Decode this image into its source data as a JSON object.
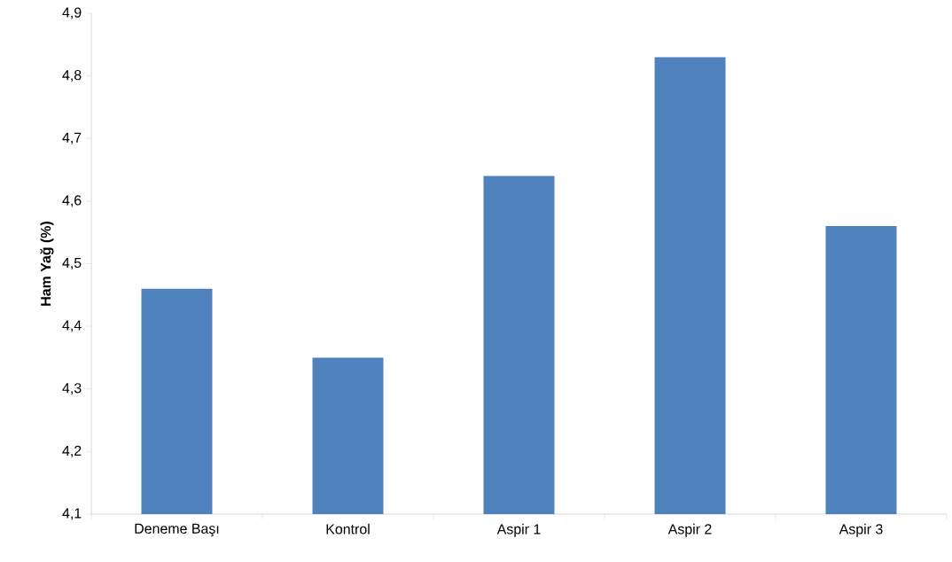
{
  "chart_data": {
    "type": "bar",
    "ylabel": "Ham Yağ (%)",
    "categories": [
      "Deneme Başı",
      "Kontrol",
      "Aspir 1",
      "Aspir 2",
      "Aspir 3"
    ],
    "values": [
      4.46,
      4.35,
      4.64,
      4.83,
      4.56
    ],
    "color": "#4f81bd",
    "ylim": [
      4.1,
      4.9
    ],
    "yticks": [
      {
        "value": 4.1,
        "label": "4,1"
      },
      {
        "value": 4.2,
        "label": "4,2"
      },
      {
        "value": 4.3,
        "label": "4,3"
      },
      {
        "value": 4.4,
        "label": "4,4"
      },
      {
        "value": 4.5,
        "label": "4,5"
      },
      {
        "value": 4.6,
        "label": "4,6"
      },
      {
        "value": 4.7,
        "label": "4,7"
      },
      {
        "value": 4.8,
        "label": "4,8"
      },
      {
        "value": 4.9,
        "label": "4,9"
      }
    ],
    "grid": false
  }
}
